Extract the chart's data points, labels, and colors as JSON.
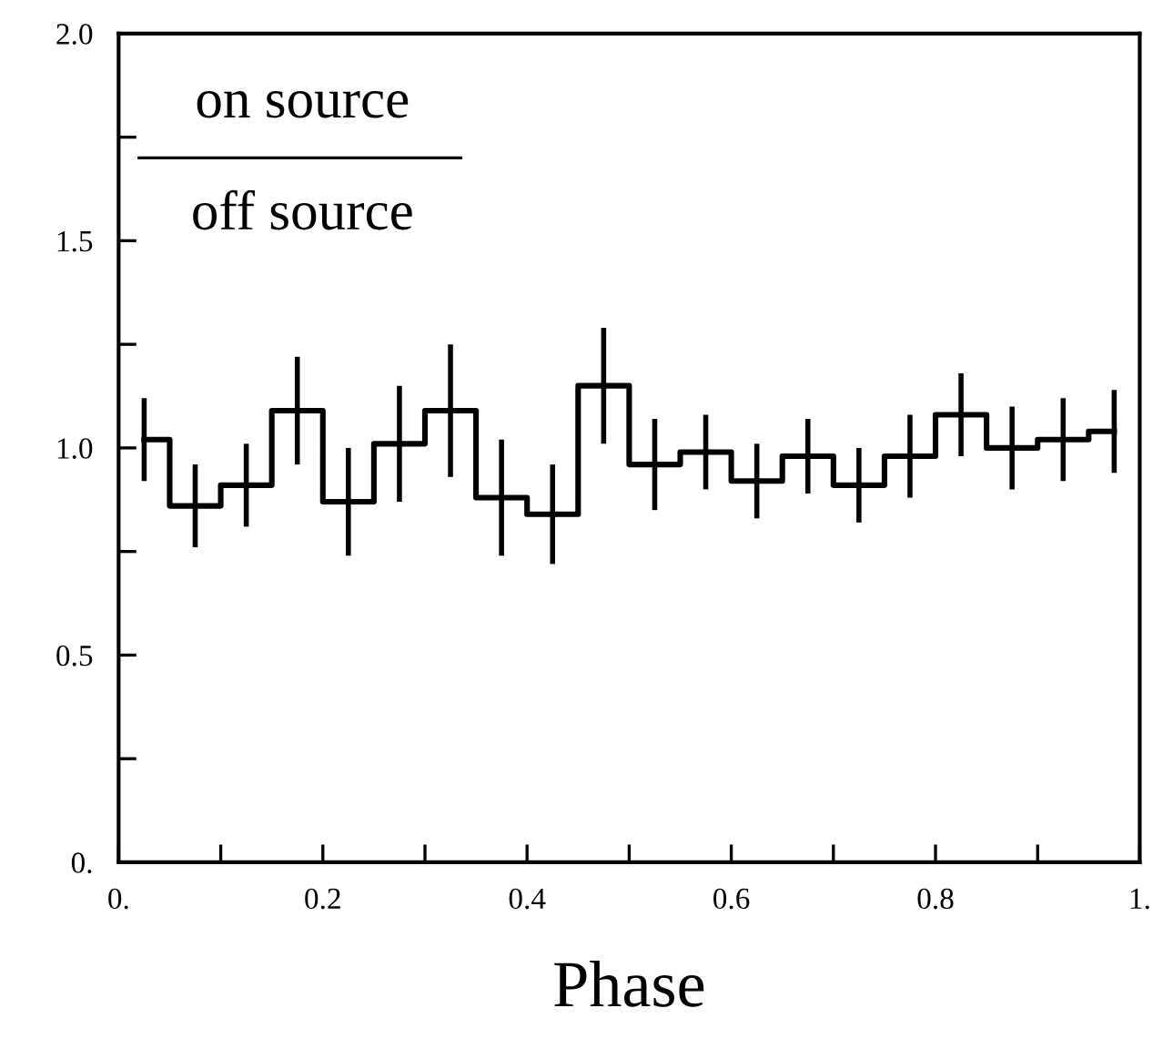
{
  "chart_data": {
    "type": "step",
    "xlabel": "Phase",
    "annotations": [
      "on source",
      "off source"
    ],
    "x": [
      0.025,
      0.075,
      0.125,
      0.175,
      0.225,
      0.275,
      0.325,
      0.375,
      0.425,
      0.475,
      0.525,
      0.575,
      0.625,
      0.675,
      0.725,
      0.775,
      0.825,
      0.875,
      0.925,
      0.975
    ],
    "values": [
      1.02,
      0.86,
      0.91,
      1.09,
      0.87,
      1.01,
      1.09,
      0.88,
      0.84,
      1.15,
      0.96,
      0.99,
      0.92,
      0.98,
      0.91,
      0.98,
      1.08,
      1.0,
      1.02,
      1.04
    ],
    "errors": [
      0.1,
      0.1,
      0.1,
      0.13,
      0.13,
      0.14,
      0.16,
      0.14,
      0.12,
      0.14,
      0.11,
      0.09,
      0.09,
      0.09,
      0.09,
      0.1,
      0.1,
      0.1,
      0.1,
      0.1
    ],
    "color": "#000000",
    "xlim": [
      0,
      1
    ],
    "ylim": [
      0,
      2
    ],
    "xticks": [
      {
        "value": 0,
        "label": "0."
      },
      {
        "value": 0.1,
        "label": null
      },
      0.2,
      {
        "value": 0.3,
        "label": null
      },
      0.4,
      {
        "value": 0.5,
        "label": null
      },
      0.6,
      {
        "value": 0.7,
        "label": null
      },
      0.8,
      {
        "value": 0.9,
        "label": null
      },
      {
        "value": 1,
        "label": "1."
      }
    ],
    "yticks": [
      {
        "value": 0,
        "label": "0."
      },
      {
        "value": 0.25,
        "label": null
      },
      0.5,
      {
        "value": 0.75,
        "label": null
      },
      {
        "value": 1.0,
        "label": "1.0"
      },
      {
        "value": 1.25,
        "label": null
      },
      1.5,
      {
        "value": 1.75,
        "label": null
      },
      {
        "value": 2.0,
        "label": "2.0"
      }
    ],
    "grid": false
  }
}
